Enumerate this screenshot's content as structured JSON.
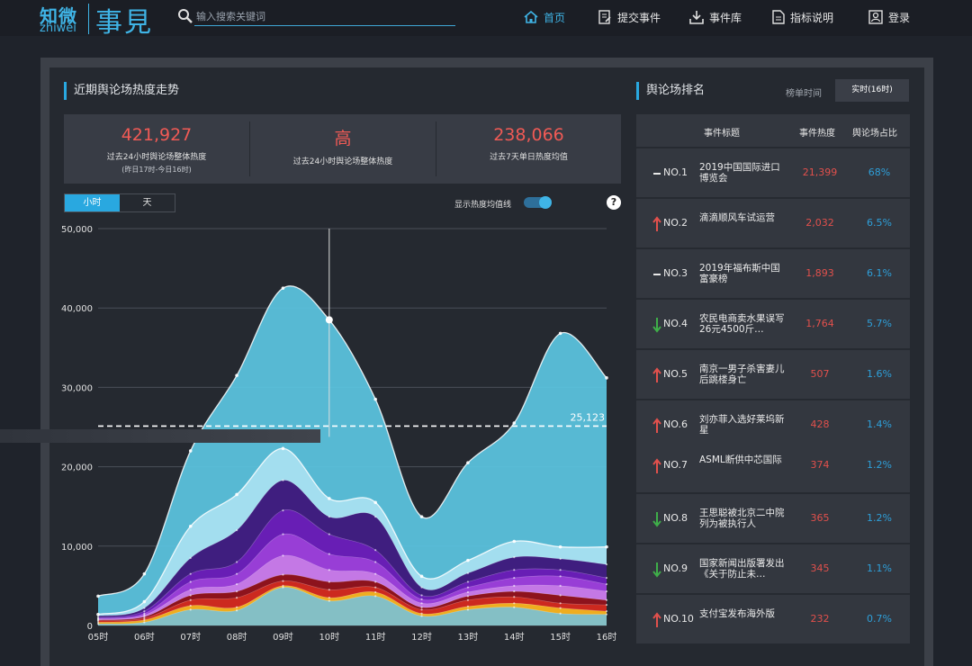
{
  "header": {
    "logo_zh": "知微",
    "logo_en": "zhiwei",
    "brand": "事見",
    "search_placeholder": "输入搜索关键词",
    "nav": [
      {
        "label": "首页",
        "icon": "home-icon",
        "active": true
      },
      {
        "label": "提交事件",
        "icon": "submit-icon",
        "active": false
      },
      {
        "label": "事件库",
        "icon": "download-icon",
        "active": false
      },
      {
        "label": "指标说明",
        "icon": "document-icon",
        "active": false
      },
      {
        "label": "登录",
        "icon": "user-icon",
        "active": false
      }
    ]
  },
  "trend": {
    "title": "近期舆论场热度走势",
    "stats": [
      {
        "value": "421,927",
        "label": "过去24小时舆论场整体热度",
        "sub": "(昨日17时-今日16时)"
      },
      {
        "value": "高",
        "label": "过去24小时舆论场整体热度",
        "sub": ""
      },
      {
        "value": "238,066",
        "label": "过去7天单日热度均值",
        "sub": ""
      }
    ],
    "toggle": [
      "小时",
      "天"
    ],
    "avg_switch_label": "显示热度均值线",
    "help": "?"
  },
  "chart_data": {
    "type": "area",
    "categories": [
      "05时",
      "06时",
      "07时",
      "08时",
      "09时",
      "10时",
      "11时",
      "12时",
      "13时",
      "14时",
      "15时",
      "16时"
    ],
    "y_ticks": [
      "0",
      "10,000",
      "20,000",
      "30,000",
      "40,000",
      "50,000"
    ],
    "ylim": [
      0,
      50000
    ],
    "avg_line": 25123,
    "avg_label": "25,123",
    "grid": true,
    "colors": {
      "total": "#5bc6e2",
      "layer2": "#a8dff0",
      "layer3": "#3a1378",
      "layer4": "#6a1fb8",
      "layer5": "#9b40d8",
      "layer6": "#c67be6",
      "layer7": "#8a0e12",
      "layer8": "#d02a20",
      "layer9": "#f0b420",
      "base": "#7dc0cf"
    },
    "stack_tops": [
      [
        3700,
        6500,
        22000,
        31500,
        42500,
        38500,
        28500,
        13700,
        20500,
        25500,
        36800,
        31200
      ],
      [
        1400,
        3000,
        12500,
        16500,
        22300,
        16000,
        15500,
        6200,
        8200,
        10600,
        9900,
        9900
      ],
      [
        1200,
        2200,
        8500,
        12000,
        18300,
        13700,
        13700,
        4800,
        6600,
        8600,
        8400,
        7700
      ],
      [
        1000,
        1800,
        6500,
        8000,
        14500,
        11500,
        9500,
        3800,
        5500,
        7000,
        7000,
        6000
      ],
      [
        900,
        1500,
        5500,
        6500,
        11500,
        9000,
        8000,
        3300,
        4800,
        6000,
        6200,
        5200
      ],
      [
        800,
        1300,
        4500,
        5200,
        8800,
        7000,
        6500,
        2800,
        4200,
        5000,
        5000,
        4300
      ],
      [
        700,
        1100,
        3800,
        4300,
        6400,
        5500,
        5500,
        2300,
        3700,
        4300,
        3800,
        3200
      ],
      [
        600,
        900,
        3200,
        3500,
        5600,
        4500,
        4800,
        2000,
        3200,
        3600,
        2800,
        2600
      ],
      [
        400,
        700,
        2500,
        2300,
        5000,
        3500,
        4200,
        1500,
        2400,
        2800,
        2200,
        1800
      ],
      [
        200,
        400,
        2000,
        1900,
        4800,
        3100,
        3700,
        1200,
        2000,
        2300,
        1500,
        1400
      ]
    ],
    "hover_index": 5,
    "hover_value": 38500
  },
  "ranking": {
    "title": "舆论场排名",
    "time_label": "榜单时间",
    "time_value": "实时(16时)",
    "columns": [
      "事件标题",
      "事件热度",
      "舆论场占比"
    ],
    "rows": [
      {
        "no": "NO.1",
        "trend": "flat",
        "title": "2019中国国际进口博览会",
        "heat": "21,399",
        "share": "68%"
      },
      {
        "no": "NO.2",
        "trend": "up",
        "title": "滴滴顺风车试运营",
        "heat": "2,032",
        "share": "6.5%"
      },
      {
        "no": "NO.3",
        "trend": "flat",
        "title": "2019年福布斯中国富豪榜",
        "heat": "1,893",
        "share": "6.1%"
      },
      {
        "no": "NO.4",
        "trend": "down",
        "title": "农民电商卖水果误写26元4500斤…",
        "heat": "1,764",
        "share": "5.7%"
      },
      {
        "no": "NO.5",
        "trend": "up",
        "title": "南京一男子杀害妻儿后跳楼身亡",
        "heat": "507",
        "share": "1.6%"
      },
      {
        "no": "NO.6",
        "trend": "up",
        "title": "刘亦菲入选好莱坞新星",
        "heat": "428",
        "share": "1.4%"
      },
      {
        "no": "NO.7",
        "trend": "up",
        "title": "ASML断供中芯国际",
        "heat": "374",
        "share": "1.2%"
      },
      {
        "no": "NO.8",
        "trend": "down",
        "title": "王思聪被北京二中院列为被执行人",
        "heat": "365",
        "share": "1.2%"
      },
      {
        "no": "NO.9",
        "trend": "down",
        "title": "国家新闻出版署发出《关于防止未…",
        "heat": "345",
        "share": "1.1%"
      },
      {
        "no": "NO.10",
        "trend": "up",
        "title": "支付宝发布海外版",
        "heat": "232",
        "share": "0.7%"
      }
    ]
  }
}
